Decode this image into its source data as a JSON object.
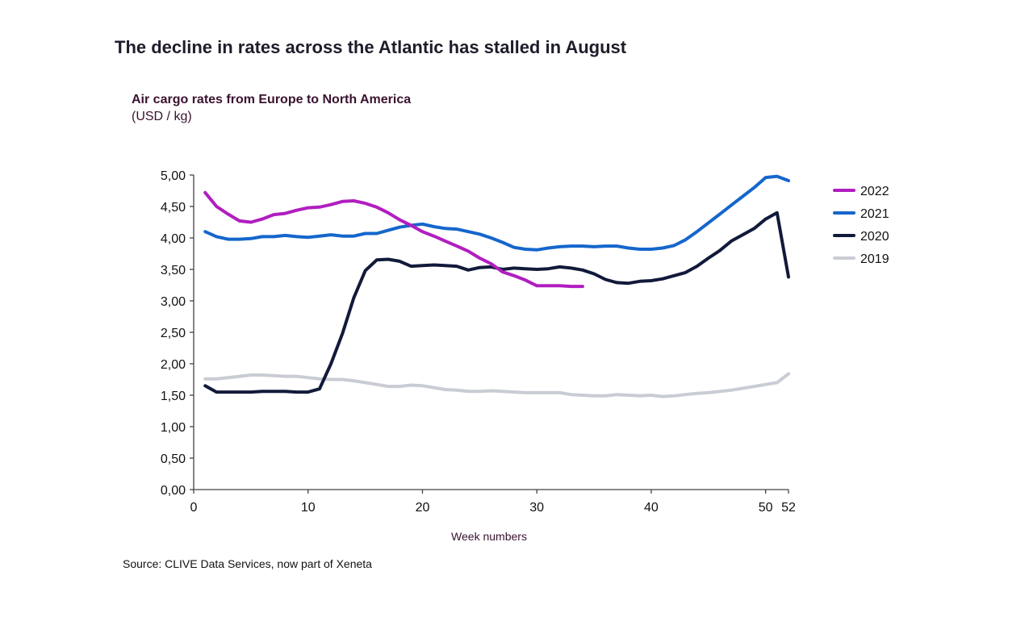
{
  "chart_data": {
    "type": "line",
    "title": "The decline in rates across the Atlantic has stalled in August",
    "subtitle": "Air cargo rates from Europe to North America",
    "ylabel": "(USD / kg)",
    "xlabel": "Week numbers",
    "source": "Source: CLIVE Data Services, now part of Xeneta",
    "xlim": [
      0,
      52
    ],
    "ylim": [
      0,
      5
    ],
    "x_ticks": [
      "0",
      "10",
      "20",
      "30",
      "40",
      "50",
      "52"
    ],
    "x_tick_values": [
      0,
      10,
      20,
      30,
      40,
      50,
      52
    ],
    "y_ticks": [
      "0,00",
      "0,50",
      "1,00",
      "1,50",
      "2,00",
      "2,50",
      "3,00",
      "3,50",
      "4,00",
      "4,50",
      "5,00"
    ],
    "y_tick_values": [
      0,
      0.5,
      1,
      1.5,
      2,
      2.5,
      3,
      3.5,
      4,
      4.5,
      5
    ],
    "grid": false,
    "legend_position": "right",
    "series": [
      {
        "name": "2022",
        "color": "#b01ec0",
        "values": [
          4.72,
          4.5,
          4.38,
          4.27,
          4.25,
          4.3,
          4.37,
          4.39,
          4.44,
          4.48,
          4.49,
          4.53,
          4.58,
          4.59,
          4.55,
          4.49,
          4.4,
          4.29,
          4.2,
          4.1,
          4.03,
          3.95,
          3.87,
          3.79,
          3.68,
          3.59,
          3.46,
          3.4,
          3.33,
          3.24,
          3.24,
          3.24,
          3.23,
          3.23
        ]
      },
      {
        "name": "2021",
        "color": "#1566cc",
        "values": [
          4.1,
          4.02,
          3.98,
          3.98,
          3.99,
          4.02,
          4.02,
          4.04,
          4.02,
          4.01,
          4.03,
          4.05,
          4.03,
          4.03,
          4.07,
          4.07,
          4.12,
          4.17,
          4.2,
          4.22,
          4.18,
          4.15,
          4.14,
          4.1,
          4.06,
          4.0,
          3.93,
          3.85,
          3.82,
          3.81,
          3.84,
          3.86,
          3.87,
          3.87,
          3.86,
          3.87,
          3.87,
          3.84,
          3.82,
          3.82,
          3.84,
          3.88,
          3.97,
          4.1,
          4.24,
          4.38,
          4.52,
          4.66,
          4.8,
          4.96,
          4.98,
          4.91
        ]
      },
      {
        "name": "2020",
        "color": "#121a3a",
        "values": [
          1.65,
          1.55,
          1.55,
          1.55,
          1.55,
          1.56,
          1.56,
          1.56,
          1.55,
          1.55,
          1.6,
          2.0,
          2.48,
          3.05,
          3.48,
          3.65,
          3.66,
          3.63,
          3.55,
          3.56,
          3.57,
          3.56,
          3.55,
          3.49,
          3.53,
          3.54,
          3.5,
          3.52,
          3.51,
          3.5,
          3.51,
          3.54,
          3.52,
          3.49,
          3.43,
          3.34,
          3.29,
          3.28,
          3.31,
          3.32,
          3.35,
          3.4,
          3.45,
          3.55,
          3.68,
          3.8,
          3.95,
          4.05,
          4.15,
          4.3,
          4.4,
          3.38
        ]
      },
      {
        "name": "2019",
        "color": "#c9ccd4",
        "values": [
          1.76,
          1.76,
          1.78,
          1.8,
          1.82,
          1.82,
          1.81,
          1.8,
          1.8,
          1.78,
          1.76,
          1.75,
          1.75,
          1.73,
          1.7,
          1.67,
          1.64,
          1.64,
          1.66,
          1.65,
          1.62,
          1.59,
          1.58,
          1.56,
          1.56,
          1.57,
          1.56,
          1.55,
          1.54,
          1.54,
          1.54,
          1.54,
          1.51,
          1.5,
          1.49,
          1.49,
          1.51,
          1.5,
          1.49,
          1.5,
          1.48,
          1.49,
          1.51,
          1.53,
          1.54,
          1.56,
          1.58,
          1.61,
          1.64,
          1.67,
          1.7,
          1.84
        ]
      }
    ]
  }
}
